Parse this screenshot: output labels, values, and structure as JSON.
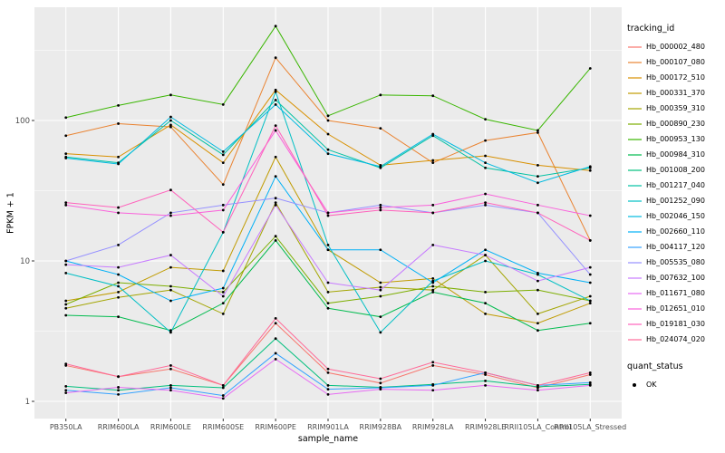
{
  "chart_data": {
    "type": "line",
    "title": "",
    "xlabel": "sample_name",
    "ylabel": "FPKM + 1",
    "y_scale": "log10",
    "y_ticks": [
      1,
      10,
      100
    ],
    "ylim": [
      0.75,
      640
    ],
    "grid": true,
    "panel_background": "#EBEBEB",
    "grid_color": "#FFFFFF",
    "point_color": "#000000",
    "tick_label_color": "#4D4D4D",
    "legend_position": "right",
    "categories": [
      "PB350LA",
      "RRIM600LA",
      "RRIM600LE",
      "RRIM600SE",
      "RRIM600PE",
      "RRIM901LA",
      "RRIM928BA",
      "RRIM928LA",
      "RRIM928LE",
      "RRII105LA_Control",
      "RRII105LA_Stressed"
    ],
    "series": [
      {
        "name": "Hb_000002_480",
        "color": "#F8766D",
        "values": [
          1.8,
          1.5,
          1.7,
          1.3,
          3.6,
          1.6,
          1.35,
          1.8,
          1.55,
          1.25,
          1.55
        ]
      },
      {
        "name": "Hb_000107_080",
        "color": "#EA8331",
        "values": [
          78,
          95,
          90,
          35,
          280,
          100,
          88,
          50,
          72,
          82,
          14
        ]
      },
      {
        "name": "Hb_000172_510",
        "color": "#D89000",
        "values": [
          58,
          55,
          93,
          50,
          165,
          80,
          48,
          52,
          56,
          48,
          44
        ]
      },
      {
        "name": "Hb_000331_370",
        "color": "#C09B00",
        "values": [
          5.2,
          6.0,
          9.0,
          8.5,
          55,
          12,
          7.0,
          7.5,
          4.2,
          3.6,
          5.0
        ]
      },
      {
        "name": "Hb_000359_310",
        "color": "#A3A500",
        "values": [
          4.6,
          5.5,
          6.2,
          4.2,
          26,
          6.0,
          6.5,
          6.2,
          11,
          4.2,
          5.6
        ]
      },
      {
        "name": "Hb_000890_230",
        "color": "#7CAE00",
        "values": [
          4.9,
          7.0,
          6.6,
          6.0,
          15,
          5.0,
          5.6,
          6.6,
          6.0,
          6.2,
          5.2
        ]
      },
      {
        "name": "Hb_000953_130",
        "color": "#39B600",
        "values": [
          105,
          128,
          152,
          130,
          470,
          108,
          152,
          150,
          102,
          85,
          235
        ]
      },
      {
        "name": "Hb_000984_310",
        "color": "#00BB4E",
        "values": [
          4.1,
          4.0,
          3.2,
          5.0,
          14,
          4.6,
          4.0,
          6.0,
          5.0,
          3.2,
          3.6
        ]
      },
      {
        "name": "Hb_001008_200",
        "color": "#00BF7D",
        "values": [
          1.28,
          1.2,
          1.3,
          1.25,
          2.8,
          1.3,
          1.26,
          1.32,
          1.4,
          1.27,
          1.32
        ]
      },
      {
        "name": "Hb_001217_040",
        "color": "#00C1A3",
        "values": [
          55,
          50,
          100,
          57,
          140,
          62,
          46,
          78,
          46,
          40,
          46
        ]
      },
      {
        "name": "Hb_001252_090",
        "color": "#00BFC4",
        "values": [
          8.2,
          6.6,
          3.1,
          16,
          160,
          13,
          3.1,
          7.2,
          10,
          8.0,
          5.2
        ]
      },
      {
        "name": "Hb_002046_150",
        "color": "#00BAE0",
        "values": [
          54,
          49,
          106,
          60,
          130,
          58,
          47,
          80,
          50,
          36,
          47
        ]
      },
      {
        "name": "Hb_002660_110",
        "color": "#00B0F6",
        "values": [
          10,
          8.0,
          5.2,
          6.4,
          40,
          12,
          12,
          7.0,
          12,
          8.2,
          7.0
        ]
      },
      {
        "name": "Hb_004117_120",
        "color": "#35A2FF",
        "values": [
          1.2,
          1.12,
          1.25,
          1.1,
          2.2,
          1.22,
          1.25,
          1.3,
          1.6,
          1.3,
          1.36
        ]
      },
      {
        "name": "Hb_005535_080",
        "color": "#9590FF",
        "values": [
          10,
          13,
          22,
          25,
          28,
          22,
          25,
          22,
          25,
          22,
          8.0
        ]
      },
      {
        "name": "Hb_007632_100",
        "color": "#C77CFF",
        "values": [
          9.4,
          9.0,
          11,
          5.6,
          25,
          7.0,
          6.2,
          13,
          11,
          7.2,
          9.0
        ]
      },
      {
        "name": "Hb_011671_080",
        "color": "#E76BF3",
        "values": [
          1.15,
          1.26,
          1.2,
          1.05,
          2.0,
          1.12,
          1.22,
          1.2,
          1.3,
          1.2,
          1.3
        ]
      },
      {
        "name": "Hb_012651_010",
        "color": "#FA62DB",
        "values": [
          25,
          22,
          21,
          23,
          85,
          22,
          24,
          25,
          30,
          25,
          21
        ]
      },
      {
        "name": "Hb_019181_030",
        "color": "#FF62BC",
        "values": [
          26,
          24,
          32,
          16,
          92,
          21,
          23,
          22,
          26,
          22,
          14
        ]
      },
      {
        "name": "Hb_024074_020",
        "color": "#FF6A98",
        "values": [
          1.85,
          1.5,
          1.8,
          1.3,
          3.9,
          1.7,
          1.45,
          1.9,
          1.6,
          1.3,
          1.6
        ]
      }
    ],
    "legend": {
      "color_title": "tracking_id",
      "shape_title": "quant_status",
      "shape_items": [
        {
          "label": "OK"
        }
      ]
    }
  }
}
